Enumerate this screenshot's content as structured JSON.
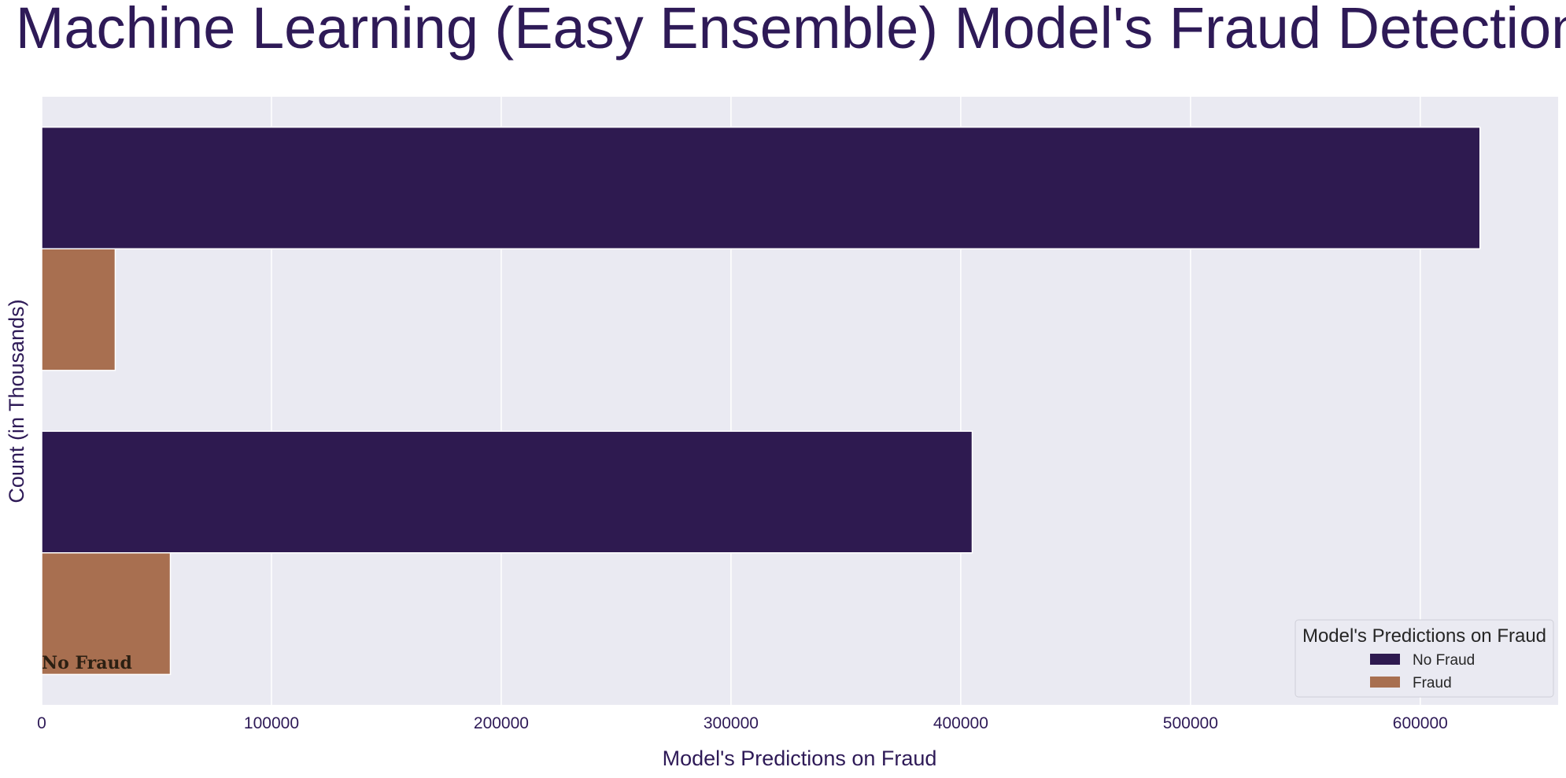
{
  "chart_data": {
    "type": "bar",
    "orientation": "horizontal",
    "title": "Machine Learning (Easy Ensemble) Model's  Fraud Detection",
    "xlabel": "Model's Predictions on Fraud",
    "ylabel": "Count (in Thousands)",
    "xlim": [
      0,
      660000
    ],
    "xticks": [
      0,
      100000,
      200000,
      300000,
      400000,
      500000,
      600000
    ],
    "grid": true,
    "legend": {
      "title": "Model's Predictions on Fraud",
      "placement": "lower-right"
    },
    "annotation": "No Fraud",
    "groups": 2,
    "series": [
      {
        "name": "No Fraud",
        "color": "#2e1a50",
        "values": [
          626000,
          405000
        ]
      },
      {
        "name": "Fraud",
        "color": "#a86f50",
        "values": [
          32000,
          56000
        ]
      }
    ]
  }
}
